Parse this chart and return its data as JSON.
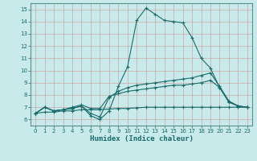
{
  "xlabel": "Humidex (Indice chaleur)",
  "xlim": [
    -0.5,
    23.5
  ],
  "ylim": [
    5.5,
    15.5
  ],
  "xticks": [
    0,
    1,
    2,
    3,
    4,
    5,
    6,
    7,
    8,
    9,
    10,
    11,
    12,
    13,
    14,
    15,
    16,
    17,
    18,
    19,
    20,
    21,
    22,
    23
  ],
  "yticks": [
    6,
    7,
    8,
    9,
    10,
    11,
    12,
    13,
    14,
    15
  ],
  "bg_color": "#c8eaea",
  "grid_color": "#c8a8a8",
  "line_color": "#1a6b6b",
  "spine_color": "#5a9090",
  "line1_x": [
    0,
    1,
    2,
    3,
    4,
    5,
    6,
    7,
    8,
    9,
    10,
    11,
    12,
    13,
    14,
    15,
    16,
    17,
    18,
    19,
    20,
    21,
    22,
    23
  ],
  "line1_y": [
    6.5,
    7.0,
    6.7,
    6.8,
    6.9,
    7.1,
    6.3,
    6.0,
    6.7,
    8.7,
    10.3,
    14.1,
    15.1,
    14.6,
    14.1,
    14.0,
    13.9,
    12.7,
    11.0,
    10.2,
    8.6,
    7.5,
    7.1,
    7.0
  ],
  "line2_x": [
    0,
    1,
    2,
    3,
    4,
    5,
    6,
    7,
    8,
    9,
    10,
    11,
    12,
    13,
    14,
    15,
    16,
    17,
    18,
    19,
    20,
    21,
    22,
    23
  ],
  "line2_y": [
    6.5,
    7.0,
    6.7,
    6.8,
    6.9,
    7.1,
    6.5,
    6.2,
    7.8,
    8.3,
    8.6,
    8.8,
    8.9,
    9.0,
    9.1,
    9.2,
    9.3,
    9.4,
    9.6,
    9.8,
    8.7,
    7.5,
    7.1,
    7.0
  ],
  "line3_x": [
    0,
    1,
    2,
    3,
    4,
    5,
    6,
    7,
    8,
    9,
    10,
    11,
    12,
    13,
    14,
    15,
    16,
    17,
    18,
    19,
    20,
    21,
    22,
    23
  ],
  "line3_y": [
    6.5,
    7.0,
    6.7,
    6.8,
    7.0,
    7.2,
    6.9,
    6.9,
    7.9,
    8.1,
    8.3,
    8.4,
    8.5,
    8.6,
    8.7,
    8.8,
    8.8,
    8.9,
    9.0,
    9.2,
    8.6,
    7.4,
    7.1,
    7.0
  ],
  "line4_x": [
    0,
    1,
    2,
    3,
    4,
    5,
    6,
    7,
    8,
    9,
    10,
    11,
    12,
    13,
    14,
    15,
    16,
    17,
    18,
    19,
    20,
    21,
    22,
    23
  ],
  "line4_y": [
    6.5,
    6.6,
    6.6,
    6.7,
    6.7,
    6.8,
    6.8,
    6.8,
    6.85,
    6.9,
    6.9,
    6.95,
    7.0,
    7.0,
    7.0,
    7.0,
    7.0,
    7.0,
    7.0,
    7.0,
    7.0,
    7.0,
    7.0,
    7.0
  ]
}
